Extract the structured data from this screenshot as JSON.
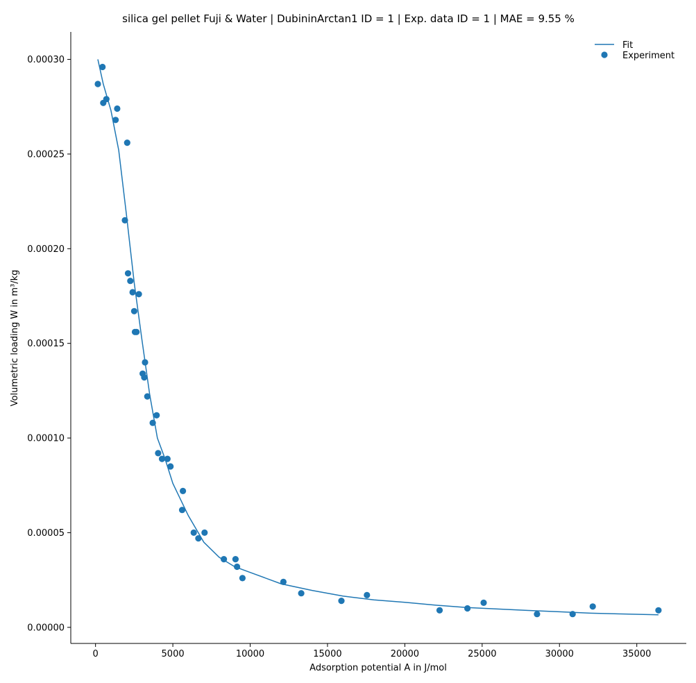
{
  "chart_data": {
    "type": "scatter",
    "title": "silica gel pellet Fuji & Water | DubininArctan1 ID = 1 | Exp. data ID = 1 | MAE = 9.55 %",
    "xlabel": "Adsorption potential A in J/mol",
    "ylabel": "Volumetric loading W in m³/kg",
    "xlim": [
      -1600,
      38200
    ],
    "ylim": [
      -8.5e-06,
      0.0003145
    ],
    "x_ticks": [
      0,
      5000,
      10000,
      15000,
      20000,
      25000,
      30000,
      35000
    ],
    "x_tick_labels": [
      "0",
      "5000",
      "10000",
      "15000",
      "20000",
      "25000",
      "30000",
      "35000"
    ],
    "y_ticks": [
      0,
      5e-05,
      0.0001,
      0.00015,
      0.0002,
      0.00025,
      0.0003
    ],
    "y_tick_labels": [
      "0.00000",
      "0.00005",
      "0.00010",
      "0.00015",
      "0.00020",
      "0.00025",
      "0.00030"
    ],
    "grid": false,
    "legend_position": "top-right",
    "color": "#1f77b4",
    "series": [
      {
        "name": "Fit",
        "kind": "line",
        "x": [
          150,
          500,
          1000,
          1500,
          2000,
          2500,
          3000,
          3500,
          4000,
          4500,
          5000,
          6000,
          7000,
          8000,
          9000,
          10000,
          12000,
          14000,
          16000,
          18000,
          20000,
          22000,
          24000,
          26000,
          28000,
          30000,
          32000,
          34000,
          36400
        ],
        "y": [
          0.0003,
          0.000287,
          0.000273,
          0.000252,
          0.000218,
          0.000182,
          0.000152,
          0.000123,
          0.0001,
          8.9e-05,
          7.6e-05,
          5.9e-05,
          4.5e-05,
          3.7e-05,
          3.2e-05,
          2.9e-05,
          2.3e-05,
          1.95e-05,
          1.65e-05,
          1.45e-05,
          1.32e-05,
          1.17e-05,
          1.05e-05,
          9.7e-06,
          8.9e-06,
          8.2e-06,
          7.5e-06,
          7.1e-06,
          6.6e-06
        ]
      },
      {
        "name": "Experiment",
        "kind": "scatter",
        "x": [
          150,
          450,
          500,
          700,
          1300,
          1400,
          1900,
          2050,
          2100,
          2250,
          2400,
          2500,
          2550,
          2650,
          2800,
          3050,
          3150,
          3200,
          3350,
          3700,
          3950,
          4050,
          4300,
          4650,
          4850,
          5600,
          5650,
          6350,
          6650,
          7050,
          8300,
          9050,
          9150,
          9500,
          12150,
          13300,
          15900,
          17550,
          22250,
          24050,
          25100,
          28550,
          30850,
          32150,
          36400
        ],
        "y": [
          0.000287,
          0.000296,
          0.000277,
          0.000279,
          0.000268,
          0.000274,
          0.000215,
          0.000256,
          0.000187,
          0.000183,
          0.000177,
          0.000167,
          0.000156,
          0.000156,
          0.000176,
          0.000134,
          0.000132,
          0.00014,
          0.000122,
          0.000108,
          0.000112,
          9.2e-05,
          8.9e-05,
          8.9e-05,
          8.5e-05,
          6.2e-05,
          7.2e-05,
          5e-05,
          4.7e-05,
          5e-05,
          3.6e-05,
          3.6e-05,
          3.2e-05,
          2.6e-05,
          2.4e-05,
          1.8e-05,
          1.4e-05,
          1.7e-05,
          9e-06,
          1e-05,
          1.3e-05,
          7e-06,
          7e-06,
          1.1e-05,
          9e-06
        ]
      }
    ]
  }
}
